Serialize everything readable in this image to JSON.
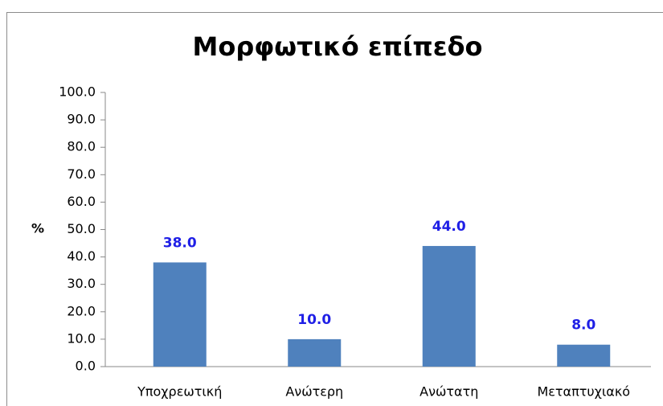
{
  "chart_data": {
    "type": "bar",
    "title": "Μορφωτικό επίπεδο",
    "y_label": "%",
    "categories": [
      "Υποχρεωτική",
      "Ανώτερη",
      "Ανώτατη",
      "Μεταπτυχιακό"
    ],
    "values": [
      38,
      10,
      44,
      8
    ],
    "value_labels": [
      "38.0",
      "10.0",
      "44.0",
      "8.0"
    ],
    "color": "#4f81bd",
    "ylim": [
      0,
      100
    ],
    "yticks": [
      {
        "value": 0,
        "label": "0.0"
      },
      {
        "value": 10,
        "label": "10.0"
      },
      {
        "value": 20,
        "label": "20.0"
      },
      {
        "value": 30,
        "label": "30.0"
      },
      {
        "value": 40,
        "label": "40.0"
      },
      {
        "value": 50,
        "label": "50.0"
      },
      {
        "value": 60,
        "label": "60.0"
      },
      {
        "value": 70,
        "label": "70.0"
      },
      {
        "value": 80,
        "label": "80.0"
      },
      {
        "value": 90,
        "label": "90.0"
      },
      {
        "value": 100,
        "label": "100.0"
      }
    ],
    "grid": false
  }
}
